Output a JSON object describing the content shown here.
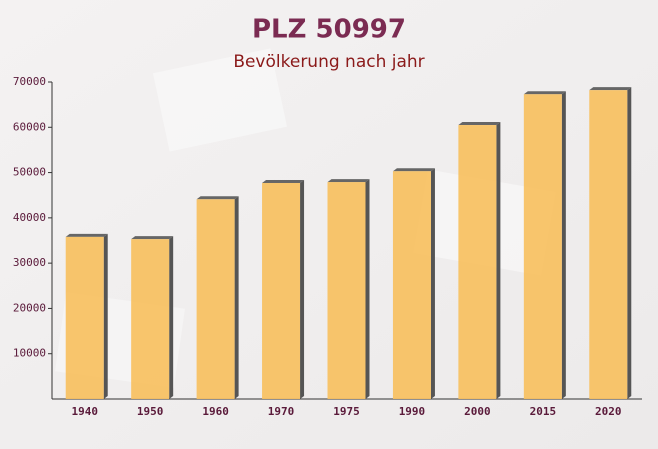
{
  "chart_data": {
    "type": "bar",
    "title": "PLZ 50997",
    "subtitle": "Bevölkerung nach jahr",
    "categories": [
      "1940",
      "1950",
      "1960",
      "1970",
      "1975",
      "1990",
      "2000",
      "2015",
      "2020"
    ],
    "values": [
      35800,
      35300,
      44100,
      47700,
      47900,
      50300,
      60500,
      67300,
      68200
    ],
    "color": "#f7c060",
    "ylim": [
      0,
      70000
    ],
    "yticks": [
      10000,
      20000,
      30000,
      40000,
      50000,
      60000,
      70000
    ]
  }
}
